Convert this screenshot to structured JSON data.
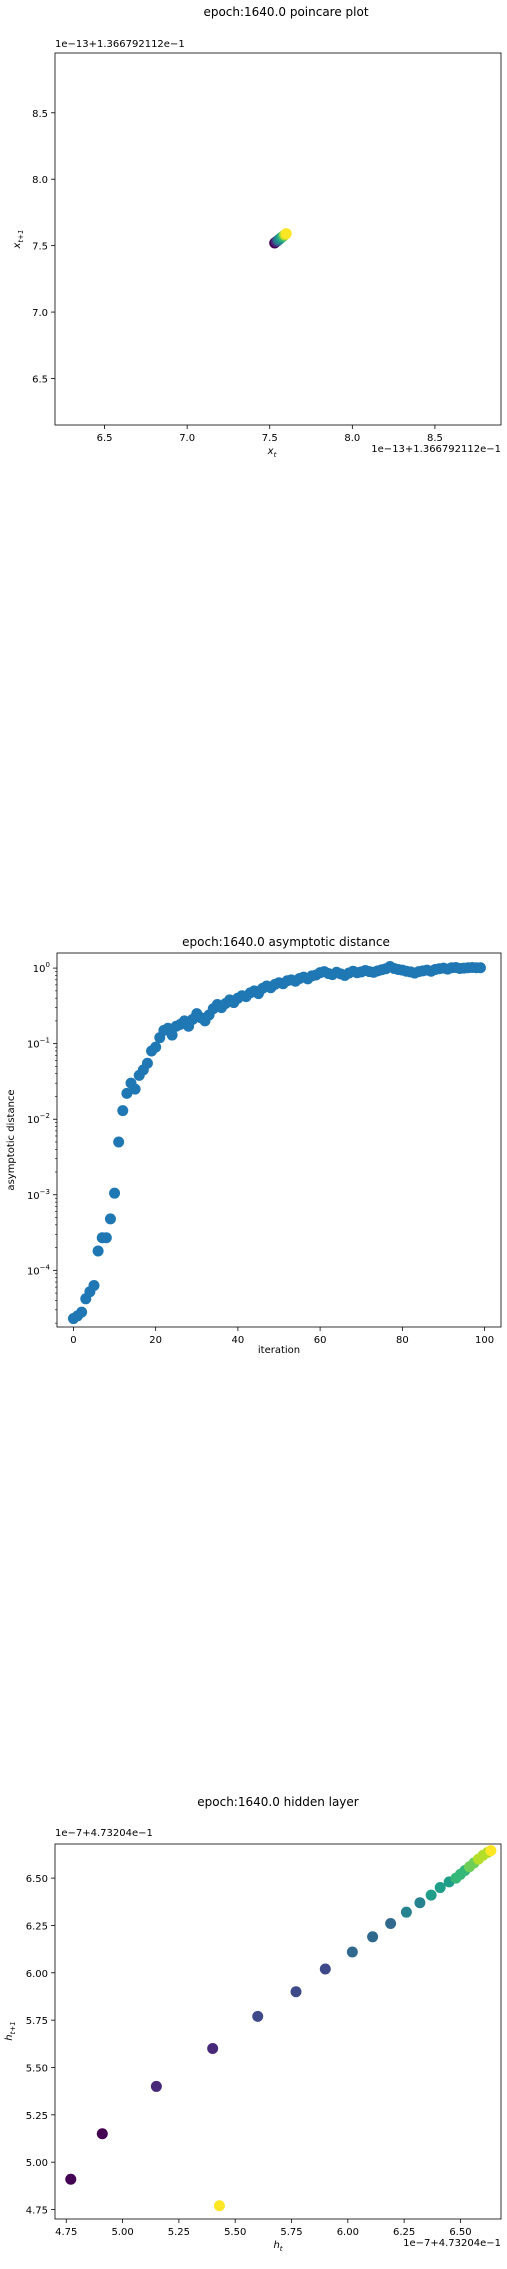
{
  "chart_data": [
    {
      "type": "scatter",
      "title": "epoch:1640.0 poincare plot",
      "xlabel": "x_t",
      "ylabel": "x_{t+1}",
      "x_offset_text": "1e−13+1.366792112e−1",
      "y_offset_text": "1e−13+1.366792112e−1",
      "xlim": [
        6.2,
        8.9
      ],
      "ylim": [
        6.15,
        8.95
      ],
      "xticks": [
        "6.5",
        "7.0",
        "7.5",
        "8.0",
        "8.5"
      ],
      "yticks": [
        "6.5",
        "7.0",
        "7.5",
        "8.0",
        "8.5"
      ],
      "colormap": "viridis",
      "points": [
        [
          7.53,
          7.52
        ],
        [
          7.54,
          7.53
        ],
        [
          7.55,
          7.54
        ],
        [
          7.56,
          7.55
        ],
        [
          7.57,
          7.56
        ],
        [
          7.58,
          7.57
        ],
        [
          7.59,
          7.58
        ],
        [
          7.6,
          7.59
        ]
      ]
    },
    {
      "type": "scatter",
      "title": "epoch:1640.0 asymptotic distance",
      "xlabel": "iteration",
      "ylabel": "asymptotic distance",
      "yscale": "log",
      "xlim": [
        -4,
        104
      ],
      "ylim_exp": [
        -4.75,
        0.2
      ],
      "xticks": [
        "0",
        "20",
        "40",
        "60",
        "80",
        "100"
      ],
      "yticks": [
        {
          "base": "10",
          "exp": "0"
        },
        {
          "base": "10",
          "exp": "−1"
        },
        {
          "base": "10",
          "exp": "−2"
        },
        {
          "base": "10",
          "exp": "−3"
        },
        {
          "base": "10",
          "exp": "−4"
        }
      ],
      "color": "#1f77b4",
      "x": [
        0,
        1,
        2,
        3,
        4,
        5,
        6,
        7,
        8,
        9,
        10,
        11,
        12,
        13,
        14,
        15,
        16,
        17,
        18,
        19,
        20,
        21,
        22,
        23,
        24,
        25,
        26,
        27,
        28,
        29,
        30,
        31,
        32,
        33,
        34,
        35,
        36,
        37,
        38,
        39,
        40,
        41,
        42,
        43,
        44,
        45,
        46,
        47,
        48,
        49,
        50,
        51,
        52,
        53,
        54,
        55,
        56,
        57,
        58,
        59,
        60,
        61,
        62,
        63,
        64,
        65,
        66,
        67,
        68,
        69,
        70,
        71,
        72,
        73,
        74,
        75,
        76,
        77,
        78,
        79,
        80,
        81,
        82,
        83,
        84,
        85,
        86,
        87,
        88,
        89,
        90,
        91,
        92,
        93,
        94,
        95,
        96,
        97,
        98,
        99
      ],
      "y": [
        2.3e-05,
        2.5e-05,
        2.8e-05,
        4.2e-05,
        5.2e-05,
        6.3e-05,
        0.00018,
        0.00027,
        0.00027,
        0.00048,
        0.00105,
        0.005,
        0.013,
        0.022,
        0.03,
        0.025,
        0.038,
        0.045,
        0.055,
        0.08,
        0.09,
        0.12,
        0.15,
        0.16,
        0.13,
        0.17,
        0.18,
        0.2,
        0.17,
        0.21,
        0.25,
        0.22,
        0.2,
        0.24,
        0.29,
        0.33,
        0.3,
        0.34,
        0.38,
        0.35,
        0.4,
        0.43,
        0.42,
        0.47,
        0.5,
        0.46,
        0.54,
        0.58,
        0.55,
        0.61,
        0.64,
        0.62,
        0.68,
        0.7,
        0.67,
        0.73,
        0.76,
        0.72,
        0.79,
        0.81,
        0.87,
        0.9,
        0.85,
        0.82,
        0.88,
        0.84,
        0.8,
        0.86,
        0.91,
        0.87,
        0.89,
        0.93,
        0.9,
        0.88,
        0.92,
        0.95,
        0.98,
        1.05,
        0.99,
        0.96,
        0.94,
        0.91,
        0.89,
        0.86,
        0.9,
        0.92,
        0.94,
        0.91,
        0.96,
        0.98,
        1,
        0.97,
        1.01,
        1.02,
        0.99,
        1,
        1.01,
        1.02,
        1.01,
        1.01
      ]
    },
    {
      "type": "scatter",
      "title": "epoch:1640.0 hidden layer",
      "xlabel": "h_t",
      "ylabel": "h_{t+1}",
      "x_offset_text": "1e−7+4.73204e−1",
      "y_offset_text": "1e−7+4.73204e−1",
      "xlim": [
        4.7,
        6.68
      ],
      "ylim": [
        4.7,
        6.68
      ],
      "xticks": [
        "4.75",
        "5.00",
        "5.25",
        "5.50",
        "5.75",
        "6.00",
        "6.25",
        "6.50"
      ],
      "yticks": [
        "4.75",
        "5.00",
        "5.25",
        "5.50",
        "5.75",
        "6.00",
        "6.25",
        "6.50"
      ],
      "colormap": "viridis",
      "points": [
        [
          4.77,
          4.91
        ],
        [
          4.91,
          5.15
        ],
        [
          5.15,
          5.4
        ],
        [
          5.4,
          5.6
        ],
        [
          5.6,
          5.77
        ],
        [
          5.77,
          5.9
        ],
        [
          5.9,
          6.02
        ],
        [
          6.02,
          6.11
        ],
        [
          6.11,
          6.19
        ],
        [
          6.19,
          6.26
        ],
        [
          6.26,
          6.32
        ],
        [
          6.32,
          6.37
        ],
        [
          6.37,
          6.41
        ],
        [
          6.41,
          6.45
        ],
        [
          6.45,
          6.48
        ],
        [
          6.48,
          6.5
        ],
        [
          6.5,
          6.52
        ],
        [
          6.52,
          6.54
        ],
        [
          6.54,
          6.56
        ],
        [
          6.56,
          6.58
        ],
        [
          6.58,
          6.6
        ],
        [
          6.6,
          6.62
        ],
        [
          6.62,
          6.635
        ],
        [
          6.635,
          6.645
        ],
        [
          5.43,
          4.77
        ]
      ]
    }
  ]
}
